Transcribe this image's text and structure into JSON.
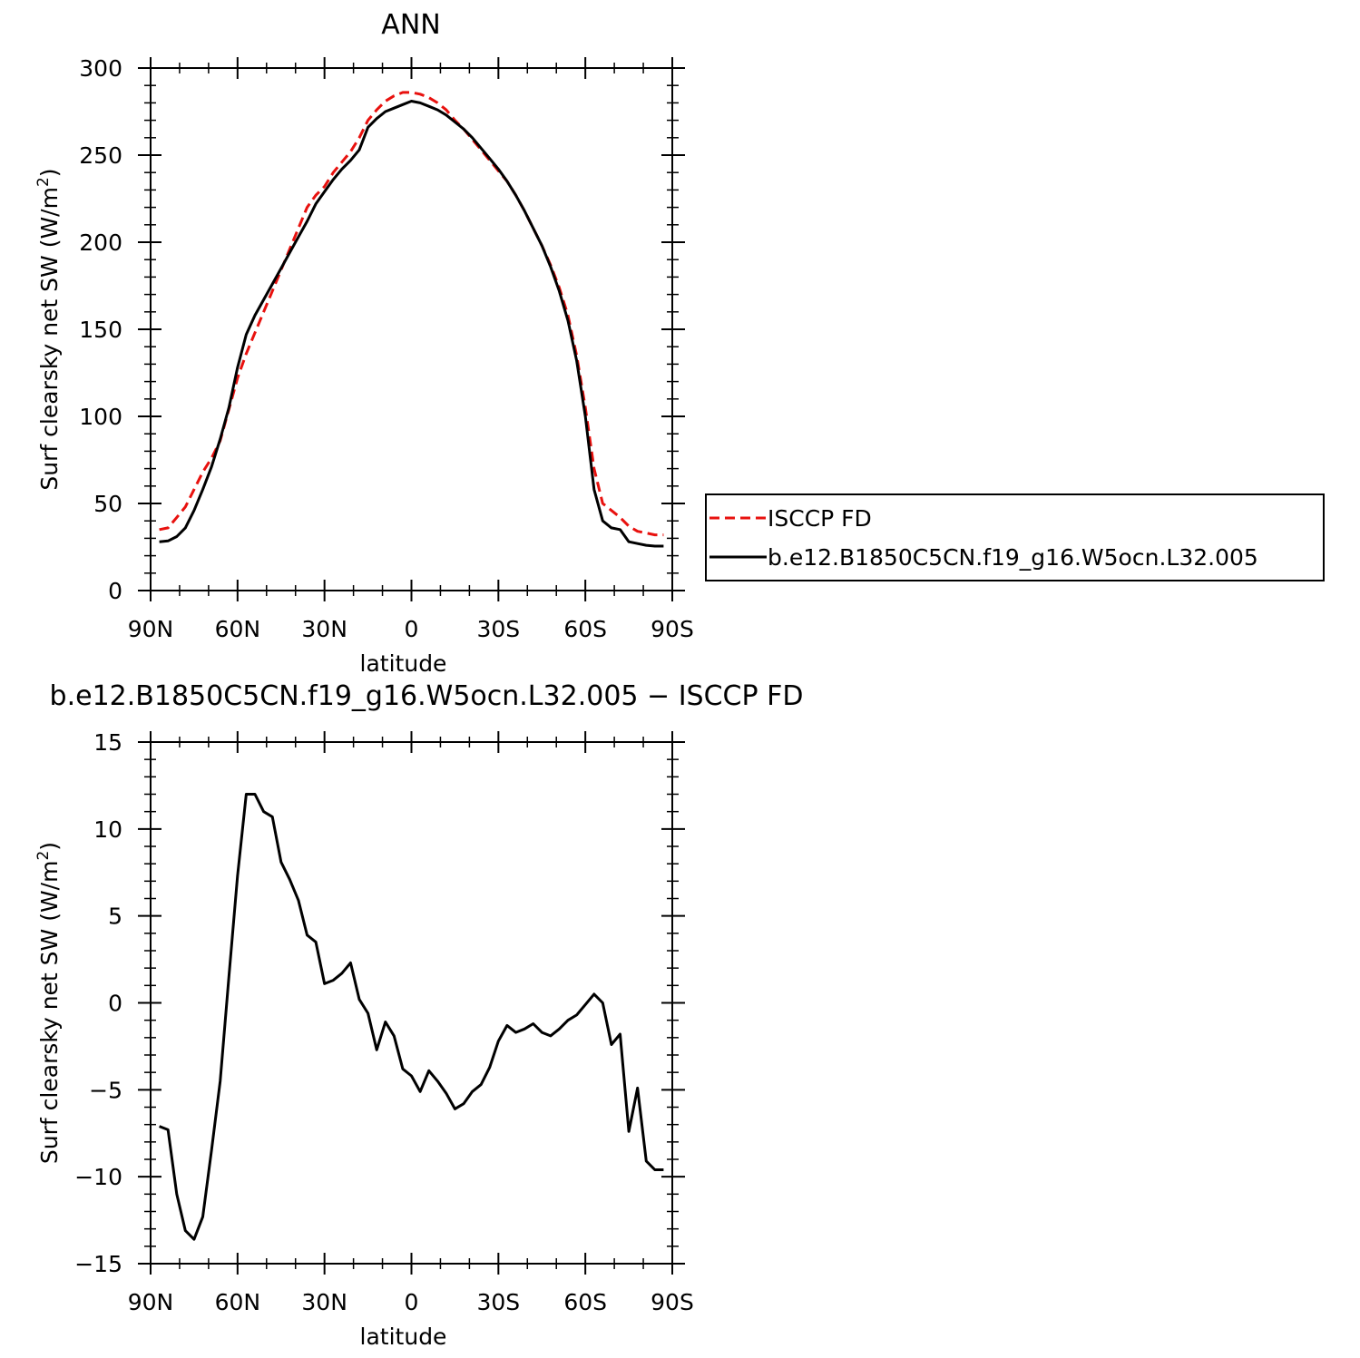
{
  "chart_data": [
    {
      "type": "line",
      "title": "ANN",
      "xlabel": "latitude",
      "ylabel": "Surf clearsky net SW (W/m²)",
      "ylabel_parts": {
        "main": "Surf clearsky net SW (W/m",
        "sup": "2",
        "close": ")"
      },
      "xlim": [
        90,
        -90
      ],
      "ylim": [
        0,
        300
      ],
      "x_ticks": [
        90,
        60,
        30,
        0,
        -30,
        -60,
        -90
      ],
      "x_tick_labels": [
        "90N",
        "60N",
        "30N",
        "0",
        "30S",
        "60S",
        "90S"
      ],
      "y_ticks": [
        0,
        50,
        100,
        150,
        200,
        250,
        300
      ],
      "y_tick_labels": [
        "0",
        "50",
        "100",
        "150",
        "200",
        "250",
        "300"
      ],
      "grid": false,
      "legend": {
        "placement": "right",
        "entries": [
          {
            "name": "ISCCP FD",
            "color": "#e8110e",
            "style": "dashed"
          },
          {
            "name": "b.e12.B1850C5CN.f19_g16.W5ocn.L32.005",
            "color": "#000000",
            "style": "solid"
          }
        ]
      },
      "series": [
        {
          "name": "ISCCP FD",
          "color": "#e8110e",
          "style": "dashed",
          "x": [
            87,
            84,
            81,
            78,
            75,
            72,
            69,
            66,
            63,
            60,
            57,
            54,
            51,
            48,
            45,
            42,
            39,
            36,
            33,
            30,
            27,
            24,
            21,
            18,
            15,
            12,
            9,
            6,
            3,
            0,
            -3,
            -6,
            -9,
            -12,
            -15,
            -18,
            -21,
            -24,
            -27,
            -30,
            -33,
            -36,
            -39,
            -42,
            -45,
            -48,
            -51,
            -54,
            -57,
            -60,
            -63,
            -66,
            -69,
            -72,
            -75,
            -78,
            -81,
            -84,
            -87
          ],
          "y": [
            35,
            36,
            42,
            48,
            58,
            68,
            76,
            86,
            104,
            122,
            136,
            148,
            160,
            172,
            184,
            196,
            208,
            220,
            227,
            232,
            240,
            246,
            252,
            260,
            270,
            276,
            281,
            284,
            286,
            286,
            285,
            283,
            280,
            276,
            270,
            265,
            259,
            253,
            247,
            241,
            235,
            227,
            218,
            208,
            198,
            187,
            174,
            158,
            135,
            105,
            70,
            50,
            46,
            42,
            37,
            34,
            33,
            32,
            32
          ]
        },
        {
          "name": "b.e12.B1850C5CN.f19_g16.W5ocn.L32.005",
          "color": "#000000",
          "style": "solid",
          "x": [
            87,
            84,
            81,
            78,
            75,
            72,
            69,
            66,
            63,
            60,
            57,
            54,
            51,
            48,
            45,
            42,
            39,
            36,
            33,
            30,
            27,
            24,
            21,
            18,
            15,
            12,
            9,
            6,
            3,
            0,
            -3,
            -6,
            -9,
            -12,
            -15,
            -18,
            -21,
            -24,
            -27,
            -30,
            -33,
            -36,
            -39,
            -42,
            -45,
            -48,
            -51,
            -54,
            -57,
            -60,
            -63,
            -66,
            -69,
            -72,
            -75,
            -78,
            -81,
            -84,
            -87
          ],
          "y": [
            28,
            28.5,
            31,
            36,
            46,
            58,
            71,
            87,
            105,
            128,
            147,
            158,
            167,
            176,
            185,
            194,
            203,
            212,
            222,
            229,
            236,
            242,
            247,
            253,
            266,
            271,
            275,
            277,
            279,
            281,
            280,
            278,
            276,
            273,
            269,
            265,
            260,
            254,
            248,
            242,
            235,
            227,
            218,
            208,
            198,
            186,
            172,
            155,
            132,
            100,
            58,
            40,
            36,
            35,
            28,
            27,
            26,
            25.5,
            25.5
          ]
        }
      ]
    },
    {
      "type": "line",
      "title": "b.e12.B1850C5CN.f19_g16.W5ocn.L32.005 − ISCCP FD",
      "xlabel": "latitude",
      "ylabel": "Surf clearsky net SW (W/m²)",
      "ylabel_parts": {
        "main": "Surf clearsky net SW (W/m",
        "sup": "2",
        "close": ")"
      },
      "xlim": [
        90,
        -90
      ],
      "ylim": [
        -15,
        15
      ],
      "x_ticks": [
        90,
        60,
        30,
        0,
        -30,
        -60,
        -90
      ],
      "x_tick_labels": [
        "90N",
        "60N",
        "30N",
        "0",
        "30S",
        "60S",
        "90S"
      ],
      "y_ticks": [
        -15,
        -10,
        -5,
        0,
        5,
        10,
        15
      ],
      "y_tick_labels": [
        "−15",
        "−10",
        "−5",
        "0",
        "5",
        "10",
        "15"
      ],
      "grid": false,
      "series": [
        {
          "color": "#000000",
          "style": "solid",
          "x": [
            87,
            84,
            81,
            78,
            75,
            72,
            69,
            66,
            63,
            60,
            57,
            54,
            51,
            48,
            45,
            42,
            39,
            36,
            33,
            30,
            27,
            24,
            21,
            18,
            15,
            12,
            9,
            6,
            3,
            0,
            -3,
            -6,
            -9,
            -12,
            -15,
            -18,
            -21,
            -24,
            -27,
            -30,
            -33,
            -36,
            -39,
            -42,
            -45,
            -48,
            -51,
            -54,
            -57,
            -60,
            -63,
            -66,
            -69,
            -72,
            -75,
            -78,
            -81,
            -84,
            -87
          ],
          "y": [
            -7.1,
            -7.3,
            -11.0,
            -13.1,
            -13.6,
            -12.3,
            -8.5,
            -4.5,
            1.5,
            7.3,
            12.0,
            12.0,
            11.0,
            10.7,
            8.1,
            7.1,
            5.9,
            3.9,
            3.5,
            1.1,
            1.3,
            1.7,
            2.3,
            0.2,
            -0.6,
            -2.7,
            -1.1,
            -1.9,
            -3.8,
            -4.2,
            -5.1,
            -3.9,
            -4.5,
            -5.2,
            -6.1,
            -5.8,
            -5.1,
            -4.7,
            -3.7,
            -2.2,
            -1.3,
            -1.7,
            -1.5,
            -1.2,
            -1.7,
            -1.9,
            -1.5,
            -1.0,
            -0.7,
            -0.1,
            0.5,
            0.0,
            -2.4,
            -1.8,
            -7.4,
            -4.9,
            -9.1,
            -9.6,
            -9.6
          ]
        }
      ]
    }
  ]
}
